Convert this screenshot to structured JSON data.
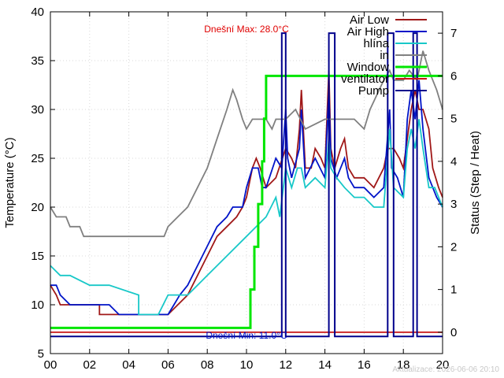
{
  "chart_data": {
    "type": "line",
    "xlim": [
      0,
      20
    ],
    "ylim": [
      5,
      40
    ],
    "y2lim": [
      -0.5,
      7.5
    ],
    "x_ticks": [
      0,
      2,
      4,
      6,
      8,
      10,
      12,
      14,
      16,
      18,
      20
    ],
    "x_tick_labels": [
      "00",
      "02",
      "04",
      "06",
      "08",
      "10",
      "12",
      "14",
      "16",
      "18",
      "20"
    ],
    "y_ticks": [
      5,
      10,
      15,
      20,
      25,
      30,
      35,
      40
    ],
    "y2_ticks": [
      0,
      1,
      2,
      3,
      4,
      5,
      6,
      7
    ],
    "ylabel": "Temperature (°C)",
    "y2label": "Status (Step / Heat)",
    "grid": true,
    "legend_position": "top-right",
    "annotations": {
      "max": "Dnešní Max: 28.0°C",
      "min": "Dnešní Min: 11.0°C"
    },
    "footer": "Aktualizace: 2026-06-06 20:10",
    "series": [
      {
        "name": "Air Low",
        "color": "#a01818",
        "axis": "y",
        "points": [
          [
            0,
            12
          ],
          [
            0.3,
            11
          ],
          [
            0.5,
            10
          ],
          [
            1,
            10
          ],
          [
            2.5,
            10
          ],
          [
            2.5,
            9
          ],
          [
            3.5,
            9
          ],
          [
            6,
            9
          ],
          [
            6.5,
            10
          ],
          [
            7,
            11
          ],
          [
            7.5,
            13
          ],
          [
            8,
            15
          ],
          [
            8.5,
            17
          ],
          [
            9,
            18
          ],
          [
            9.5,
            19
          ],
          [
            9.8,
            20
          ],
          [
            10,
            21
          ],
          [
            10.3,
            24
          ],
          [
            10.5,
            25
          ],
          [
            10.7,
            24
          ],
          [
            11,
            22
          ],
          [
            11.5,
            23
          ],
          [
            12,
            26
          ],
          [
            12.3,
            25
          ],
          [
            12.5,
            24
          ],
          [
            12.7,
            28
          ],
          [
            12.8,
            32
          ],
          [
            13,
            24
          ],
          [
            13.3,
            24
          ],
          [
            13.5,
            26
          ],
          [
            13.8,
            25
          ],
          [
            14,
            24
          ],
          [
            14.2,
            34
          ],
          [
            14.3,
            26
          ],
          [
            14.5,
            24
          ],
          [
            14.8,
            26
          ],
          [
            15,
            27
          ],
          [
            15.2,
            24
          ],
          [
            15.5,
            23
          ],
          [
            16,
            23
          ],
          [
            16.5,
            22
          ],
          [
            17,
            24
          ],
          [
            17.2,
            26
          ],
          [
            17.5,
            26
          ],
          [
            17.8,
            25
          ],
          [
            18,
            24
          ],
          [
            18.2,
            27
          ],
          [
            18.4,
            30
          ],
          [
            18.6,
            32
          ],
          [
            18.8,
            30
          ],
          [
            19,
            30
          ],
          [
            19.3,
            28
          ],
          [
            19.5,
            24
          ],
          [
            19.8,
            22
          ],
          [
            20,
            21
          ]
        ]
      },
      {
        "name": "Air High",
        "color": "#0014c8",
        "axis": "y",
        "points": [
          [
            0,
            12
          ],
          [
            0.3,
            12
          ],
          [
            0.5,
            11
          ],
          [
            1,
            10
          ],
          [
            2.5,
            10
          ],
          [
            3,
            10
          ],
          [
            3.5,
            9
          ],
          [
            6,
            9
          ],
          [
            6.3,
            10
          ],
          [
            6.6,
            11
          ],
          [
            7,
            12
          ],
          [
            7.5,
            14
          ],
          [
            8,
            16
          ],
          [
            8.5,
            18
          ],
          [
            9,
            19
          ],
          [
            9.3,
            20
          ],
          [
            9.8,
            20
          ],
          [
            10,
            22
          ],
          [
            10.3,
            24
          ],
          [
            10.6,
            24
          ],
          [
            10.8,
            22
          ],
          [
            11,
            22
          ],
          [
            11.5,
            25
          ],
          [
            11.8,
            24
          ],
          [
            12,
            30
          ],
          [
            12.1,
            25
          ],
          [
            12.3,
            23
          ],
          [
            12.7,
            26
          ],
          [
            12.8,
            30
          ],
          [
            13,
            23
          ],
          [
            13.5,
            25
          ],
          [
            14,
            23
          ],
          [
            14.2,
            32
          ],
          [
            14.3,
            25
          ],
          [
            14.6,
            23
          ],
          [
            15,
            25
          ],
          [
            15.2,
            23
          ],
          [
            15.5,
            22
          ],
          [
            16,
            22
          ],
          [
            16.5,
            21
          ],
          [
            17,
            22
          ],
          [
            17.3,
            30
          ],
          [
            17.4,
            24
          ],
          [
            17.7,
            23
          ],
          [
            18,
            21
          ],
          [
            18.2,
            29
          ],
          [
            18.4,
            32
          ],
          [
            18.6,
            29
          ],
          [
            18.8,
            33
          ],
          [
            19,
            28
          ],
          [
            19.3,
            23
          ],
          [
            19.7,
            21
          ],
          [
            20,
            20
          ]
        ]
      },
      {
        "name": "hlína",
        "color": "#18c8c8",
        "axis": "y",
        "points": [
          [
            0,
            14
          ],
          [
            0.5,
            13
          ],
          [
            1,
            13
          ],
          [
            2,
            12
          ],
          [
            3,
            12
          ],
          [
            4.5,
            11
          ],
          [
            4.5,
            9
          ],
          [
            5.5,
            9
          ],
          [
            6,
            11
          ],
          [
            7,
            11
          ],
          [
            7.5,
            12
          ],
          [
            8,
            13
          ],
          [
            9,
            15
          ],
          [
            10,
            17
          ],
          [
            10.5,
            18
          ],
          [
            11,
            19
          ],
          [
            11.5,
            21
          ],
          [
            11.7,
            19
          ],
          [
            12,
            24
          ],
          [
            12.3,
            22
          ],
          [
            12.6,
            24
          ],
          [
            12.8,
            24
          ],
          [
            13,
            22
          ],
          [
            13.5,
            23
          ],
          [
            14,
            22
          ],
          [
            14.2,
            27
          ],
          [
            14.3,
            24
          ],
          [
            14.6,
            23
          ],
          [
            15,
            22
          ],
          [
            15.5,
            21
          ],
          [
            16,
            21
          ],
          [
            16.5,
            20
          ],
          [
            17,
            20
          ],
          [
            17.3,
            28
          ],
          [
            17.5,
            22
          ],
          [
            18,
            21
          ],
          [
            18.2,
            26
          ],
          [
            18.4,
            28
          ],
          [
            18.6,
            26
          ],
          [
            18.8,
            29
          ],
          [
            19,
            26
          ],
          [
            19.3,
            22
          ],
          [
            19.6,
            22
          ],
          [
            20,
            20
          ]
        ]
      },
      {
        "name": "in",
        "color": "#808080",
        "axis": "y",
        "points": [
          [
            0,
            20
          ],
          [
            0.3,
            19
          ],
          [
            0.8,
            19
          ],
          [
            1,
            18
          ],
          [
            1.5,
            18
          ],
          [
            1.7,
            17
          ],
          [
            4,
            17
          ],
          [
            5.8,
            17
          ],
          [
            6,
            18
          ],
          [
            6.5,
            19
          ],
          [
            7,
            20
          ],
          [
            7.5,
            22
          ],
          [
            8,
            24
          ],
          [
            8.5,
            27
          ],
          [
            9,
            30
          ],
          [
            9.3,
            32
          ],
          [
            9.5,
            31
          ],
          [
            9.8,
            29
          ],
          [
            10,
            28
          ],
          [
            10.3,
            29
          ],
          [
            11,
            29
          ],
          [
            11.3,
            28
          ],
          [
            11.5,
            29
          ],
          [
            12,
            29
          ],
          [
            12.5,
            30
          ],
          [
            13,
            28
          ],
          [
            14,
            29
          ],
          [
            14.5,
            29
          ],
          [
            15,
            29
          ],
          [
            15.5,
            29
          ],
          [
            16,
            28
          ],
          [
            16.3,
            30
          ],
          [
            17,
            33
          ],
          [
            17.3,
            34
          ],
          [
            17.5,
            33
          ],
          [
            18,
            33
          ],
          [
            18.3,
            34
          ],
          [
            18.7,
            33
          ],
          [
            19,
            36
          ],
          [
            19.3,
            34
          ],
          [
            19.7,
            32
          ],
          [
            20,
            30
          ]
        ]
      },
      {
        "name": "Window",
        "color": "#00e600",
        "axis": "y2",
        "points": [
          [
            0,
            0.1
          ],
          [
            10.2,
            0.1
          ],
          [
            10.2,
            1
          ],
          [
            10.4,
            1
          ],
          [
            10.4,
            2
          ],
          [
            10.6,
            2
          ],
          [
            10.6,
            3
          ],
          [
            10.8,
            3
          ],
          [
            10.8,
            4
          ],
          [
            10.9,
            4
          ],
          [
            10.9,
            5
          ],
          [
            11,
            5
          ],
          [
            11,
            6
          ],
          [
            20,
            6
          ]
        ]
      },
      {
        "name": "ventilator",
        "color": "#c81414",
        "axis": "y2",
        "points": [
          [
            0,
            0
          ],
          [
            20,
            0
          ]
        ]
      },
      {
        "name": "Pump",
        "color": "#00008c",
        "axis": "y2",
        "points": [
          [
            0,
            -0.1
          ],
          [
            11.8,
            -0.1
          ],
          [
            11.8,
            7
          ],
          [
            12,
            7
          ],
          [
            12,
            -0.1
          ],
          [
            14.2,
            -0.1
          ],
          [
            14.2,
            7
          ],
          [
            14.5,
            7
          ],
          [
            14.5,
            -0.1
          ],
          [
            17.2,
            -0.1
          ],
          [
            17.2,
            7
          ],
          [
            17.5,
            7
          ],
          [
            17.5,
            -0.1
          ],
          [
            18.5,
            -0.1
          ],
          [
            18.5,
            7
          ],
          [
            18.7,
            7
          ],
          [
            18.7,
            -0.1
          ],
          [
            20,
            -0.1
          ]
        ]
      }
    ]
  }
}
